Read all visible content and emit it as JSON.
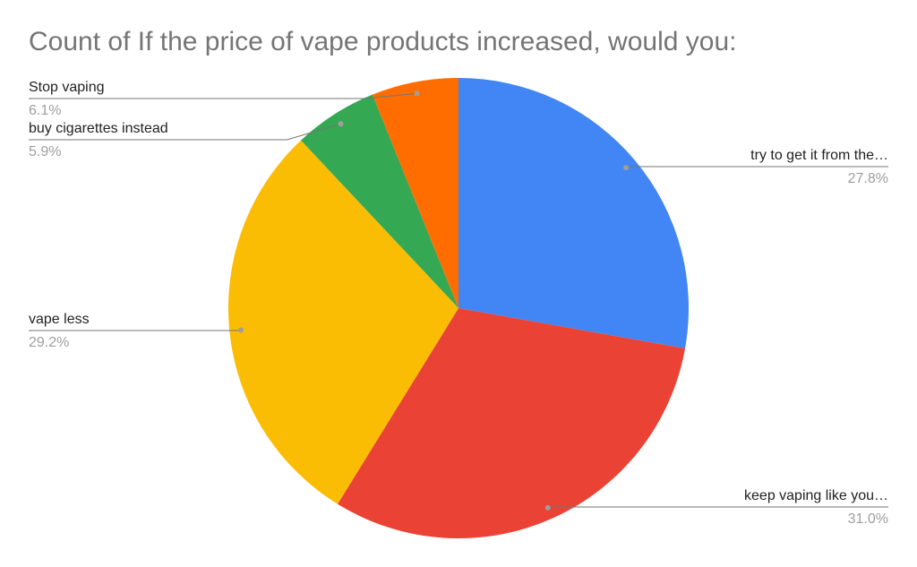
{
  "chart_data": {
    "type": "pie",
    "title": "Count of If the price of vape products increased, would you:",
    "categories": [
      "try to get it from the…",
      "keep vaping like you…",
      "vape less",
      "buy cigarettes instead",
      "Stop vaping"
    ],
    "values": [
      27.8,
      31.0,
      29.2,
      5.9,
      6.1
    ],
    "value_labels": [
      "27.8%",
      "31.0%",
      "29.2%",
      "5.9%",
      "6.1%"
    ],
    "colors": [
      "#4285f4",
      "#ea4335",
      "#fbbc04",
      "#34a853",
      "#ff6d01"
    ]
  }
}
